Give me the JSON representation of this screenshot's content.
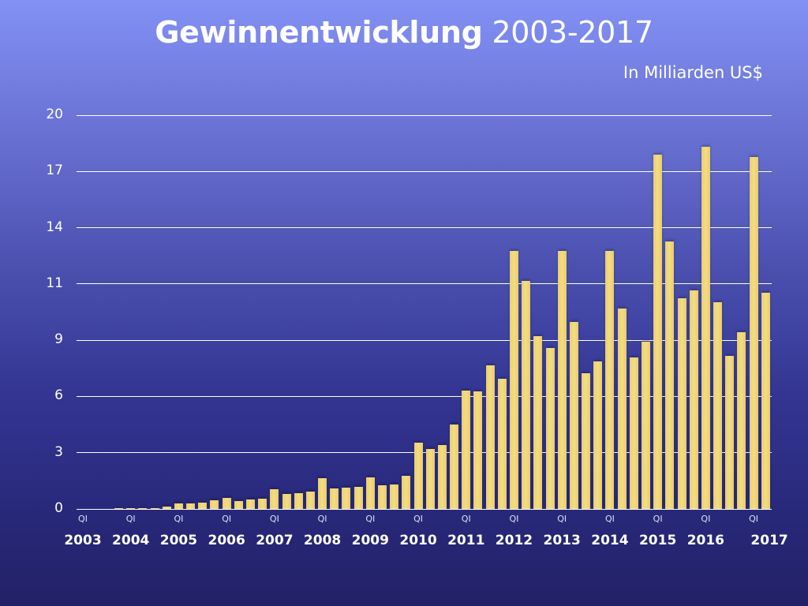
{
  "header": {
    "title_bold": "Gewinnentwicklung",
    "title_regular": "2003-2017",
    "subtitle": "In Milliarden US$"
  },
  "colors": {
    "background_top": "#8391f4",
    "background_bottom": "#222166",
    "bar": "#f0d87a",
    "gridline": "#ffffff",
    "text": "#ffffff"
  },
  "chart_data": {
    "type": "bar",
    "title": "Gewinnentwicklung 2003-2017",
    "subtitle": "In Milliarden US$",
    "xlabel": "",
    "ylabel": "In Milliarden US$",
    "ylim": [
      0,
      20
    ],
    "grid": true,
    "legend": null,
    "y_tick_labels": [
      "0",
      "3",
      "6",
      "9",
      "11",
      "14",
      "17",
      "20"
    ],
    "x_quarter_tick_label": "QI",
    "x_year_labels": [
      "2003",
      "2004",
      "2005",
      "2006",
      "2007",
      "2008",
      "2009",
      "2010",
      "2011",
      "2012",
      "2013",
      "2014",
      "2015",
      "2016",
      "2017"
    ],
    "categories": [
      "2003 Q1",
      "2003 Q2",
      "2003 Q3",
      "2003 Q4",
      "2004 Q1",
      "2004 Q2",
      "2004 Q3",
      "2004 Q4",
      "2005 Q1",
      "2005 Q2",
      "2005 Q3",
      "2005 Q4",
      "2006 Q1",
      "2006 Q2",
      "2006 Q3",
      "2006 Q4",
      "2007 Q1",
      "2007 Q2",
      "2007 Q3",
      "2007 Q4",
      "2008 Q1",
      "2008 Q2",
      "2008 Q3",
      "2008 Q4",
      "2009 Q1",
      "2009 Q2",
      "2009 Q3",
      "2009 Q4",
      "2010 Q1",
      "2010 Q2",
      "2010 Q3",
      "2010 Q4",
      "2011 Q1",
      "2011 Q2",
      "2011 Q3",
      "2011 Q4",
      "2012 Q1",
      "2012 Q2",
      "2012 Q3",
      "2012 Q4",
      "2013 Q1",
      "2013 Q2",
      "2013 Q3",
      "2013 Q4",
      "2014 Q1",
      "2014 Q2",
      "2014 Q3",
      "2014 Q4",
      "2015 Q1",
      "2015 Q2",
      "2015 Q3",
      "2015 Q4",
      "2016 Q1",
      "2016 Q2",
      "2016 Q3",
      "2016 Q4",
      "2017 Q1",
      "2017 Q2"
    ],
    "values": [
      0,
      0,
      0,
      0.05,
      0.05,
      0.05,
      0.05,
      0.12,
      0.28,
      0.28,
      0.32,
      0.44,
      0.56,
      0.4,
      0.48,
      0.52,
      1.0,
      0.76,
      0.8,
      0.88,
      1.56,
      1.04,
      1.08,
      1.12,
      1.6,
      1.2,
      1.24,
      1.68,
      3.37,
      3.05,
      3.25,
      4.29,
      6.01,
      5.97,
      7.29,
      6.61,
      13.1,
      11.58,
      8.78,
      8.18,
      13.1,
      9.5,
      6.89,
      7.49,
      13.1,
      10.18,
      7.7,
      8.5,
      18.0,
      13.59,
      10.7,
      11.1,
      18.4,
      10.5,
      7.78,
      8.98,
      17.88,
      10.98
    ]
  }
}
